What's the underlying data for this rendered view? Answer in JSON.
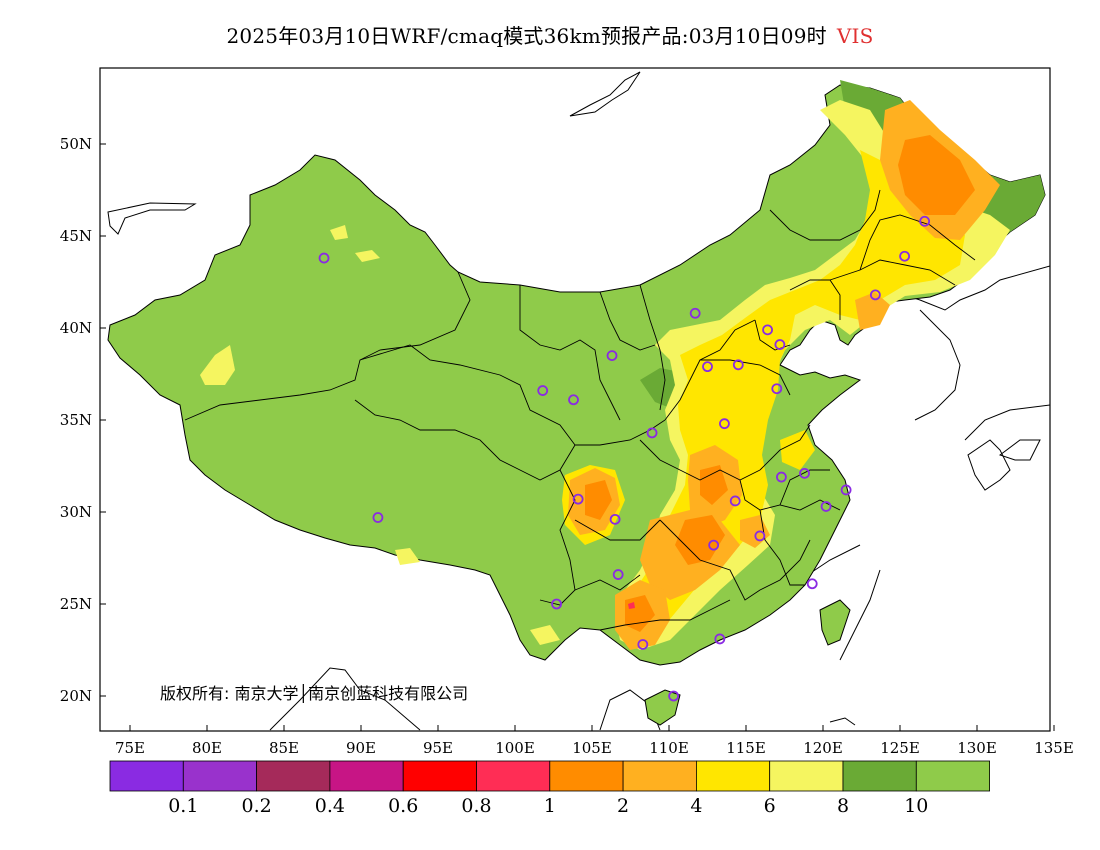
{
  "title": {
    "text": "2025年03月10日WRF/cmaq模式36km预报产品:03月10日09时",
    "variable": "VIS"
  },
  "axes": {
    "lon_ticks": [
      "75E",
      "80E",
      "85E",
      "90E",
      "95E",
      "100E",
      "105E",
      "110E",
      "115E",
      "120E",
      "125E",
      "130E",
      "135E"
    ],
    "lat_ticks": [
      "50N",
      "45N",
      "40N",
      "35N",
      "30N",
      "25N",
      "20N"
    ]
  },
  "copyright": "版权所有: 南京大学│南京创蓝科技有限公司",
  "legend": {
    "colors": [
      "#8a2be2",
      "#9932cc",
      "#a52a5a",
      "#c71585",
      "#ff0000",
      "#ff2d55",
      "#ff8c00",
      "#ffb020",
      "#ffe600",
      "#f5f560",
      "#6aaa35",
      "#8fcb4a"
    ],
    "labels": [
      "0.1",
      "0.2",
      "0.4",
      "0.6",
      "0.8",
      "1",
      "2",
      "4",
      "6",
      "8",
      "10"
    ]
  },
  "palette": {
    "land": "#8fcb4a",
    "dark_green": "#6aaa35",
    "light_yellow": "#f5f560",
    "yellow": "#ffe600",
    "light_orange": "#ffb020",
    "orange": "#ff8c00",
    "station": "#8a2be2"
  },
  "stations": [
    {
      "lon": 87.6,
      "lat": 43.8
    },
    {
      "lon": 91.1,
      "lat": 29.7
    },
    {
      "lon": 101.8,
      "lat": 36.6
    },
    {
      "lon": 103.8,
      "lat": 36.1
    },
    {
      "lon": 106.3,
      "lat": 38.5
    },
    {
      "lon": 108.9,
      "lat": 34.3
    },
    {
      "lon": 104.1,
      "lat": 30.7
    },
    {
      "lon": 106.5,
      "lat": 29.6
    },
    {
      "lon": 106.7,
      "lat": 26.6
    },
    {
      "lon": 102.7,
      "lat": 25.0
    },
    {
      "lon": 108.3,
      "lat": 22.8
    },
    {
      "lon": 110.3,
      "lat": 20.0
    },
    {
      "lon": 113.3,
      "lat": 23.1
    },
    {
      "lon": 112.9,
      "lat": 28.2
    },
    {
      "lon": 114.3,
      "lat": 30.6
    },
    {
      "lon": 115.9,
      "lat": 28.7
    },
    {
      "lon": 119.3,
      "lat": 26.1
    },
    {
      "lon": 120.2,
      "lat": 30.3
    },
    {
      "lon": 118.8,
      "lat": 32.1
    },
    {
      "lon": 121.5,
      "lat": 31.2
    },
    {
      "lon": 117.3,
      "lat": 31.9
    },
    {
      "lon": 113.6,
      "lat": 34.8
    },
    {
      "lon": 117.0,
      "lat": 36.7
    },
    {
      "lon": 114.5,
      "lat": 38.0
    },
    {
      "lon": 112.5,
      "lat": 37.9
    },
    {
      "lon": 116.4,
      "lat": 39.9
    },
    {
      "lon": 117.2,
      "lat": 39.1
    },
    {
      "lon": 111.7,
      "lat": 40.8
    },
    {
      "lon": 123.4,
      "lat": 41.8
    },
    {
      "lon": 125.3,
      "lat": 43.9
    },
    {
      "lon": 126.6,
      "lat": 45.8
    }
  ]
}
